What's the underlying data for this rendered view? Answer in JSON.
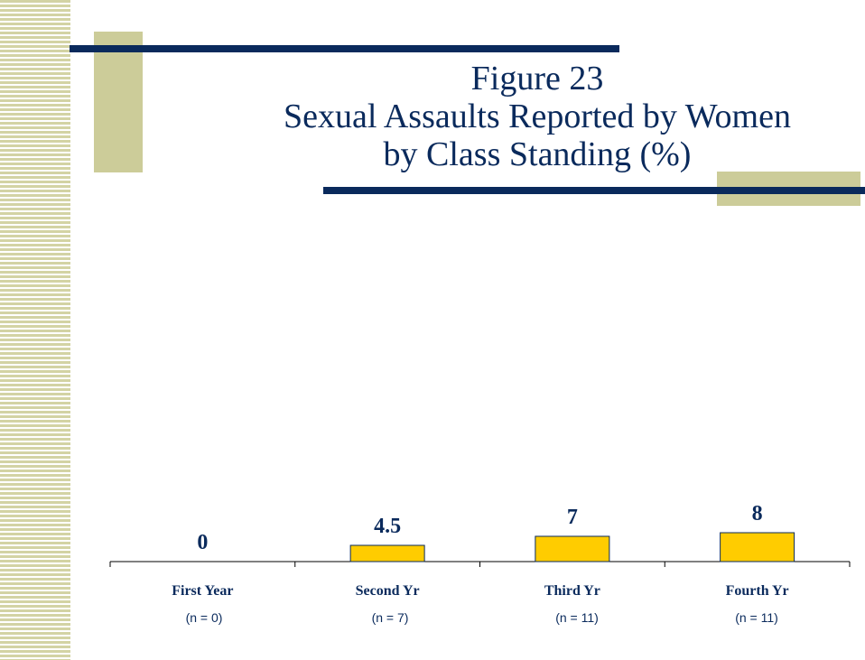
{
  "title": {
    "line1": "Figure 23",
    "line2": "Sexual Assaults Reported by Women",
    "line3": "by Class Standing (%)"
  },
  "chart_data": {
    "type": "bar",
    "title": "Figure 23 Sexual Assaults Reported by Women by Class Standing (%)",
    "categories": [
      "First Year",
      "Second Yr",
      "Third Yr",
      "Fourth Yr"
    ],
    "values": [
      0,
      4.5,
      7,
      8
    ],
    "value_labels": [
      "0",
      "4.5",
      "7",
      "8"
    ],
    "sample_sizes": [
      "(n = 0)",
      "(n = 7)",
      "(n = 11)",
      "(n = 11)"
    ],
    "ylim": [
      0,
      8
    ],
    "grid": false,
    "bar_color": "#ffcc00",
    "bar_outline": "#0a2a5c"
  },
  "colors": {
    "navy": "#0a2a5c",
    "olive": "#cccc99",
    "stripe": "#d3d3a4"
  }
}
